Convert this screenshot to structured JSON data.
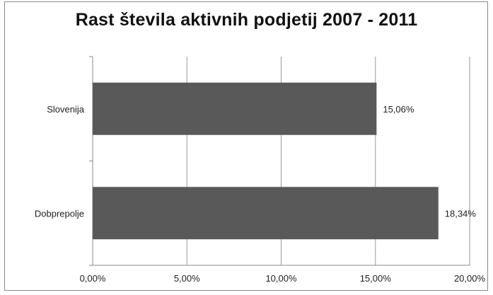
{
  "chart_data": {
    "type": "bar",
    "orientation": "horizontal",
    "title": "Rast števila aktivnih podjetij 2007 - 2011",
    "categories": [
      "Slovenija",
      "Dobprepolje"
    ],
    "values": [
      15.06,
      18.34
    ],
    "data_labels": [
      "15,06%",
      "18,34%"
    ],
    "xlim": [
      0,
      20
    ],
    "x_ticks": [
      0,
      5,
      10,
      15,
      20
    ],
    "x_tick_labels": [
      "0,00%",
      "5,00%",
      "10,00%",
      "15,00%",
      "20,00%"
    ],
    "grid": true,
    "legend": "none",
    "colors": {
      "bar": "#595959",
      "grid": "#9a9a9a",
      "axis": "#8a8a8a"
    }
  }
}
